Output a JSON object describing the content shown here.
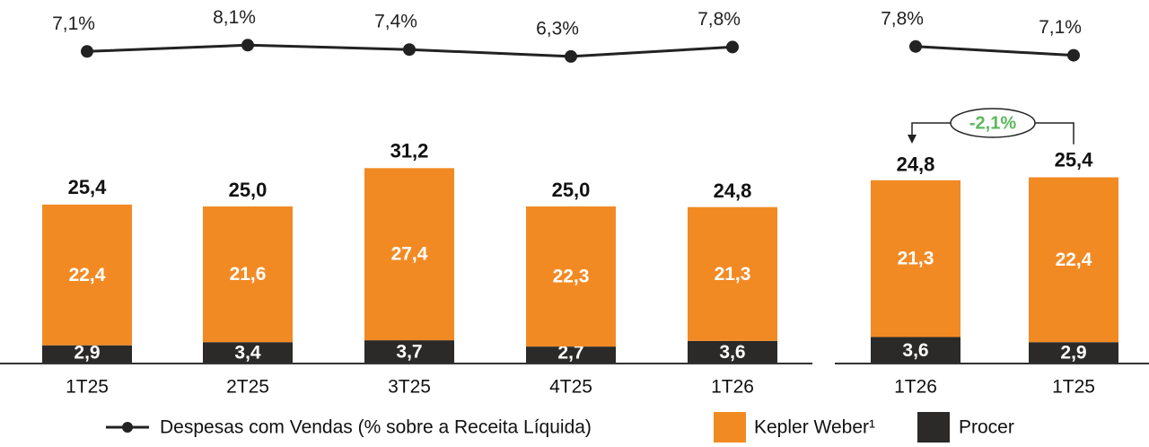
{
  "chart_data": [
    {
      "type": "stacked_bar_line",
      "categories": [
        "1T25",
        "2T25",
        "3T25",
        "4T25",
        "1T26"
      ],
      "series": [
        {
          "name": "Procer",
          "color": "#2b2a29",
          "values": [
            2.9,
            3.4,
            3.7,
            2.7,
            3.6
          ],
          "value_labels": [
            "2,9",
            "3,4",
            "3,7",
            "2,7",
            "3,6"
          ]
        },
        {
          "name": "Kepler Weber¹",
          "color": "#f28a24",
          "values": [
            22.4,
            21.6,
            27.4,
            22.3,
            21.3
          ],
          "value_labels": [
            "22,4",
            "21,6",
            "27,4",
            "22,3",
            "21,3"
          ]
        }
      ],
      "totals": {
        "values": [
          25.4,
          25.0,
          31.2,
          25.0,
          24.8
        ],
        "value_labels": [
          "25,4",
          "25,0",
          "31,2",
          "25,0",
          "24,8"
        ]
      },
      "line": {
        "name": "Despesas com Vendas (% sobre a Receita Líquida)",
        "color": "#222222",
        "values": [
          7.1,
          8.1,
          7.4,
          6.3,
          7.8
        ],
        "value_labels": [
          "7,1%",
          "8,1%",
          "7,4%",
          "6,3%",
          "7,8%"
        ]
      }
    },
    {
      "type": "stacked_bar_line",
      "categories": [
        "1T26",
        "1T25"
      ],
      "series": [
        {
          "color": "#2b2a29",
          "values": [
            3.6,
            2.9
          ],
          "value_labels": [
            "3,6",
            "2,9"
          ]
        },
        {
          "color": "#f28a24",
          "values": [
            21.3,
            22.4
          ],
          "value_labels": [
            "21,3",
            "22,4"
          ]
        }
      ],
      "totals": {
        "values": [
          24.8,
          25.4
        ],
        "value_labels": [
          "24,8",
          "25,4"
        ]
      },
      "line": {
        "color": "#222222",
        "values": [
          7.8,
          7.1
        ],
        "value_labels": [
          "7,8%",
          "7,1%"
        ]
      },
      "annotation": "-2,1%"
    }
  ]
}
